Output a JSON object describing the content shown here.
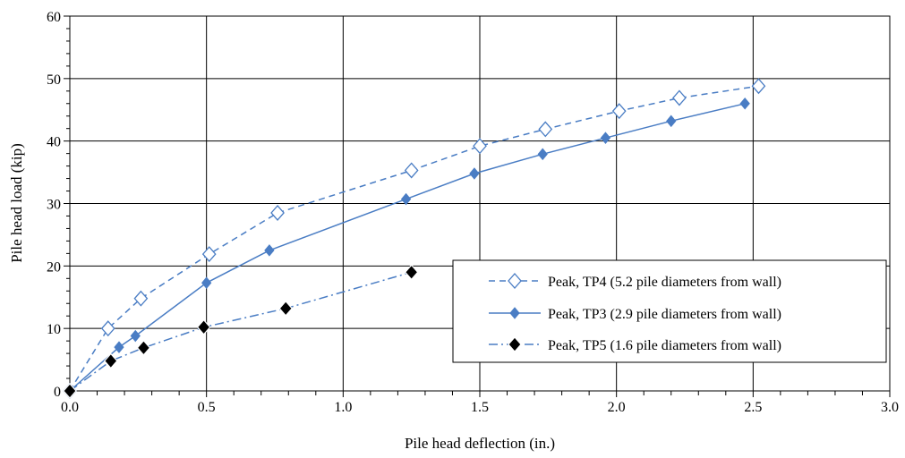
{
  "chart_data": {
    "type": "line",
    "title": "",
    "xlabel": "Pile head deflection (in.)",
    "ylabel": "Pile head load (kip)",
    "xlim": [
      0,
      3
    ],
    "ylim": [
      0,
      60
    ],
    "x_ticks": [
      "0.0",
      "0.5",
      "1.0",
      "1.5",
      "2.0",
      "2.5",
      "3.0"
    ],
    "y_ticks": [
      "0",
      "10",
      "20",
      "30",
      "40",
      "50",
      "60"
    ],
    "grid": true,
    "legend_position": "bottom-right",
    "series": [
      {
        "name": "Peak, TP4 (5.2 pile diameters from wall)",
        "line_style": "dashed",
        "marker": "open-diamond",
        "color": "#4a7dc4",
        "x": [
          0.0,
          0.14,
          0.26,
          0.51,
          0.76,
          1.25,
          1.5,
          1.74,
          2.01,
          2.23,
          2.52
        ],
        "y": [
          0,
          10,
          14.8,
          21.9,
          28.5,
          35.3,
          39.2,
          41.9,
          44.8,
          46.9,
          48.8
        ]
      },
      {
        "name": "Peak, TP3 (2.9 pile diameters from wall)",
        "line_style": "solid",
        "marker": "filled-diamond",
        "color": "#4a7dc4",
        "x": [
          0.0,
          0.18,
          0.24,
          0.5,
          0.73,
          1.23,
          1.48,
          1.73,
          1.96,
          2.2,
          2.47
        ],
        "y": [
          0,
          7,
          8.8,
          17.3,
          22.5,
          30.7,
          34.8,
          37.9,
          40.5,
          43.2,
          46
        ]
      },
      {
        "name": "Peak, TP5 (1.6 pile diameters from wall)",
        "line_style": "dash-dot",
        "marker": "black-diamond",
        "color": "#4a7dc4",
        "marker_color": "#000000",
        "x": [
          0.0,
          0.15,
          0.27,
          0.49,
          0.79,
          1.25
        ],
        "y": [
          0,
          4.8,
          6.9,
          10.2,
          13.2,
          19
        ]
      }
    ]
  }
}
